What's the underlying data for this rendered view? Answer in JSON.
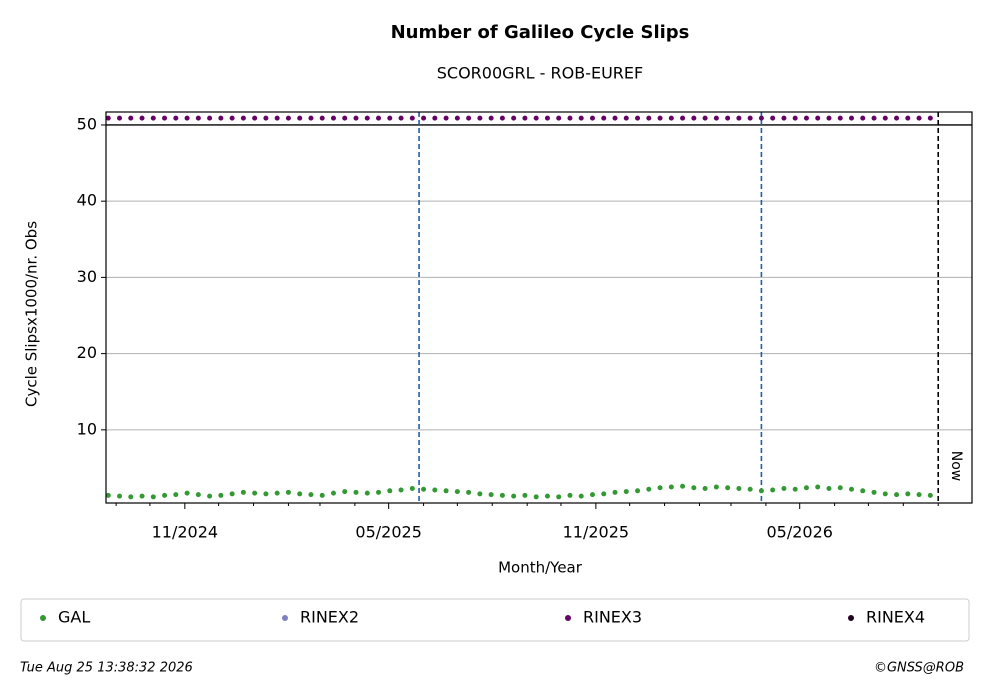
{
  "chart_data": {
    "type": "scatter",
    "title": "Number of Galileo Cycle Slips",
    "subtitle": "SCOR00GRL - ROB-EUREF",
    "x_label": "Month/Year",
    "y_label": "Cycle Slipsx1000/nr. Obs",
    "xlim": [
      "2024-08-23",
      "2026-10-01"
    ],
    "ylim": [
      0.4,
      51.7
    ],
    "yticks": [
      10,
      20,
      30,
      40,
      50
    ],
    "grid": true,
    "xticks": [
      {
        "value": "2024-11-01",
        "label": "11/2024"
      },
      {
        "value": "2025-05-01",
        "label": "05/2025"
      },
      {
        "value": "2025-11-01",
        "label": "11/2025"
      },
      {
        "value": "2026-05-01",
        "label": "05/2026"
      }
    ],
    "xminorticks": [
      "2024-09-01",
      "2024-10-01",
      "2024-12-01",
      "2025-01-01",
      "2025-02-01",
      "2025-03-01",
      "2025-04-01",
      "2025-06-01",
      "2025-07-01",
      "2025-08-01",
      "2025-09-01",
      "2025-10-01",
      "2025-12-01",
      "2026-01-01",
      "2026-02-01",
      "2026-03-01",
      "2026-04-01",
      "2026-06-01",
      "2026-07-01",
      "2026-08-01",
      "2026-09-01"
    ],
    "hline": 50,
    "vlines": {
      "color": "#1f5fa8",
      "x": [
        "2025-05-28",
        "2026-03-28"
      ]
    },
    "now": {
      "value": "2026-09-01",
      "label": "Now"
    },
    "legend": "bottom",
    "x": [
      "2024-08-25",
      "2024-09-04",
      "2024-09-14",
      "2024-09-24",
      "2024-10-04",
      "2024-10-14",
      "2024-10-24",
      "2024-11-03",
      "2024-11-13",
      "2024-11-23",
      "2024-12-03",
      "2024-12-13",
      "2024-12-23",
      "2025-01-02",
      "2025-01-12",
      "2025-01-22",
      "2025-02-01",
      "2025-02-11",
      "2025-02-21",
      "2025-03-03",
      "2025-03-13",
      "2025-03-23",
      "2025-04-02",
      "2025-04-12",
      "2025-04-22",
      "2025-05-02",
      "2025-05-12",
      "2025-05-22",
      "2025-06-01",
      "2025-06-11",
      "2025-06-21",
      "2025-07-01",
      "2025-07-11",
      "2025-07-21",
      "2025-07-31",
      "2025-08-10",
      "2025-08-20",
      "2025-08-30",
      "2025-09-09",
      "2025-09-19",
      "2025-09-29",
      "2025-10-09",
      "2025-10-19",
      "2025-10-29",
      "2025-11-08",
      "2025-11-18",
      "2025-11-28",
      "2025-12-08",
      "2025-12-18",
      "2025-12-28",
      "2026-01-07",
      "2026-01-17",
      "2026-01-27",
      "2026-02-06",
      "2026-02-16",
      "2026-02-26",
      "2026-03-08",
      "2026-03-18",
      "2026-03-28",
      "2026-04-07",
      "2026-04-17",
      "2026-04-27",
      "2026-05-07",
      "2026-05-17",
      "2026-05-27",
      "2026-06-06",
      "2026-06-16",
      "2026-06-26",
      "2026-07-06",
      "2026-07-16",
      "2026-07-26",
      "2026-08-05",
      "2026-08-15",
      "2026-08-25"
    ],
    "series": [
      {
        "name": "GAL",
        "color": "#339933",
        "values": [
          1.4,
          1.3,
          1.2,
          1.3,
          1.2,
          1.4,
          1.5,
          1.7,
          1.5,
          1.3,
          1.4,
          1.6,
          1.8,
          1.7,
          1.6,
          1.7,
          1.8,
          1.6,
          1.5,
          1.4,
          1.7,
          1.9,
          1.8,
          1.7,
          1.8,
          2.0,
          2.1,
          2.3,
          2.2,
          2.1,
          2.0,
          1.9,
          1.8,
          1.6,
          1.5,
          1.4,
          1.3,
          1.4,
          1.2,
          1.3,
          1.2,
          1.4,
          1.3,
          1.5,
          1.6,
          1.8,
          1.9,
          2.0,
          2.2,
          2.4,
          2.5,
          2.6,
          2.4,
          2.3,
          2.5,
          2.4,
          2.3,
          2.2,
          2.0,
          2.1,
          2.3,
          2.2,
          2.4,
          2.5,
          2.3,
          2.4,
          2.2,
          2.0,
          1.8,
          1.6,
          1.5,
          1.6,
          1.5,
          1.4
        ]
      },
      {
        "name": "RINEX2",
        "color": "#8080c0",
        "values": [
          null,
          null,
          null,
          null,
          null,
          null,
          null,
          null,
          null,
          null,
          null,
          null,
          null,
          null,
          null,
          null,
          null,
          null,
          null,
          null,
          null,
          null,
          null,
          null,
          null,
          null,
          null,
          null,
          null,
          null,
          null,
          null,
          null,
          null,
          null,
          null,
          null,
          null,
          null,
          null,
          null,
          null,
          null,
          null,
          null,
          null,
          null,
          null,
          null,
          null,
          null,
          null,
          null,
          null,
          null,
          null,
          null,
          null,
          null,
          null,
          null,
          null,
          null,
          null,
          null,
          null,
          null,
          null,
          null,
          null,
          null,
          null,
          null,
          null
        ]
      },
      {
        "name": "RINEX3",
        "color": "#660066",
        "values": [
          50.9,
          50.9,
          50.9,
          50.9,
          50.9,
          50.9,
          50.9,
          50.9,
          50.9,
          50.9,
          50.9,
          50.9,
          50.9,
          50.9,
          50.9,
          50.9,
          50.9,
          50.9,
          50.9,
          50.9,
          50.9,
          50.9,
          50.9,
          50.9,
          50.9,
          50.9,
          50.9,
          50.9,
          50.9,
          50.9,
          50.9,
          50.9,
          50.9,
          50.9,
          50.9,
          50.9,
          50.9,
          50.9,
          50.9,
          50.9,
          50.9,
          50.9,
          50.9,
          50.9,
          50.9,
          50.9,
          50.9,
          50.9,
          50.9,
          50.9,
          50.9,
          50.9,
          50.9,
          50.9,
          50.9,
          50.9,
          50.9,
          50.9,
          50.9,
          50.9,
          50.9,
          50.9,
          50.9,
          50.9,
          50.9,
          50.9,
          50.9,
          50.9,
          50.9,
          50.9,
          50.9,
          50.9,
          50.9,
          50.9
        ]
      },
      {
        "name": "RINEX4",
        "color": "#220022",
        "values": [
          null,
          null,
          null,
          null,
          null,
          null,
          null,
          null,
          null,
          null,
          null,
          null,
          null,
          null,
          null,
          null,
          null,
          null,
          null,
          null,
          null,
          null,
          null,
          null,
          null,
          null,
          null,
          null,
          null,
          null,
          null,
          null,
          null,
          null,
          null,
          null,
          null,
          null,
          null,
          null,
          null,
          null,
          null,
          null,
          null,
          null,
          null,
          null,
          null,
          null,
          null,
          null,
          null,
          null,
          null,
          null,
          null,
          null,
          null,
          null,
          null,
          null,
          null,
          null,
          null,
          null,
          null,
          null,
          null,
          null,
          null,
          null,
          null,
          null
        ]
      }
    ],
    "timestamp": "Tue Aug 25 13:38:32 2026",
    "copyright": "©GNSS@ROB"
  }
}
